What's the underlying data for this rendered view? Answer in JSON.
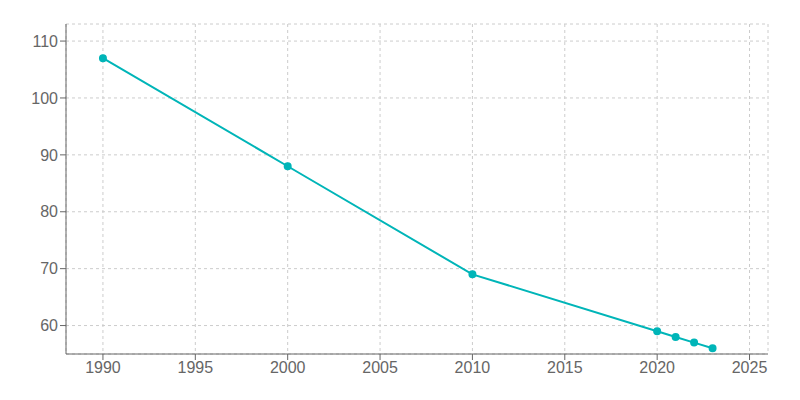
{
  "chart_data": {
    "type": "line",
    "x": [
      1990,
      2000,
      2010,
      2020,
      2021,
      2022,
      2023
    ],
    "values": [
      107,
      88,
      69,
      59,
      58,
      57,
      56
    ],
    "color": "#00b5b8",
    "marker": "circle",
    "xlim": [
      1988,
      2026
    ],
    "xticks": [
      1990,
      1995,
      2000,
      2005,
      2010,
      2015,
      2020,
      2025
    ],
    "ylim": [
      55,
      113
    ],
    "yticks": [
      60,
      70,
      80,
      90,
      100,
      110
    ],
    "grid": true
  }
}
